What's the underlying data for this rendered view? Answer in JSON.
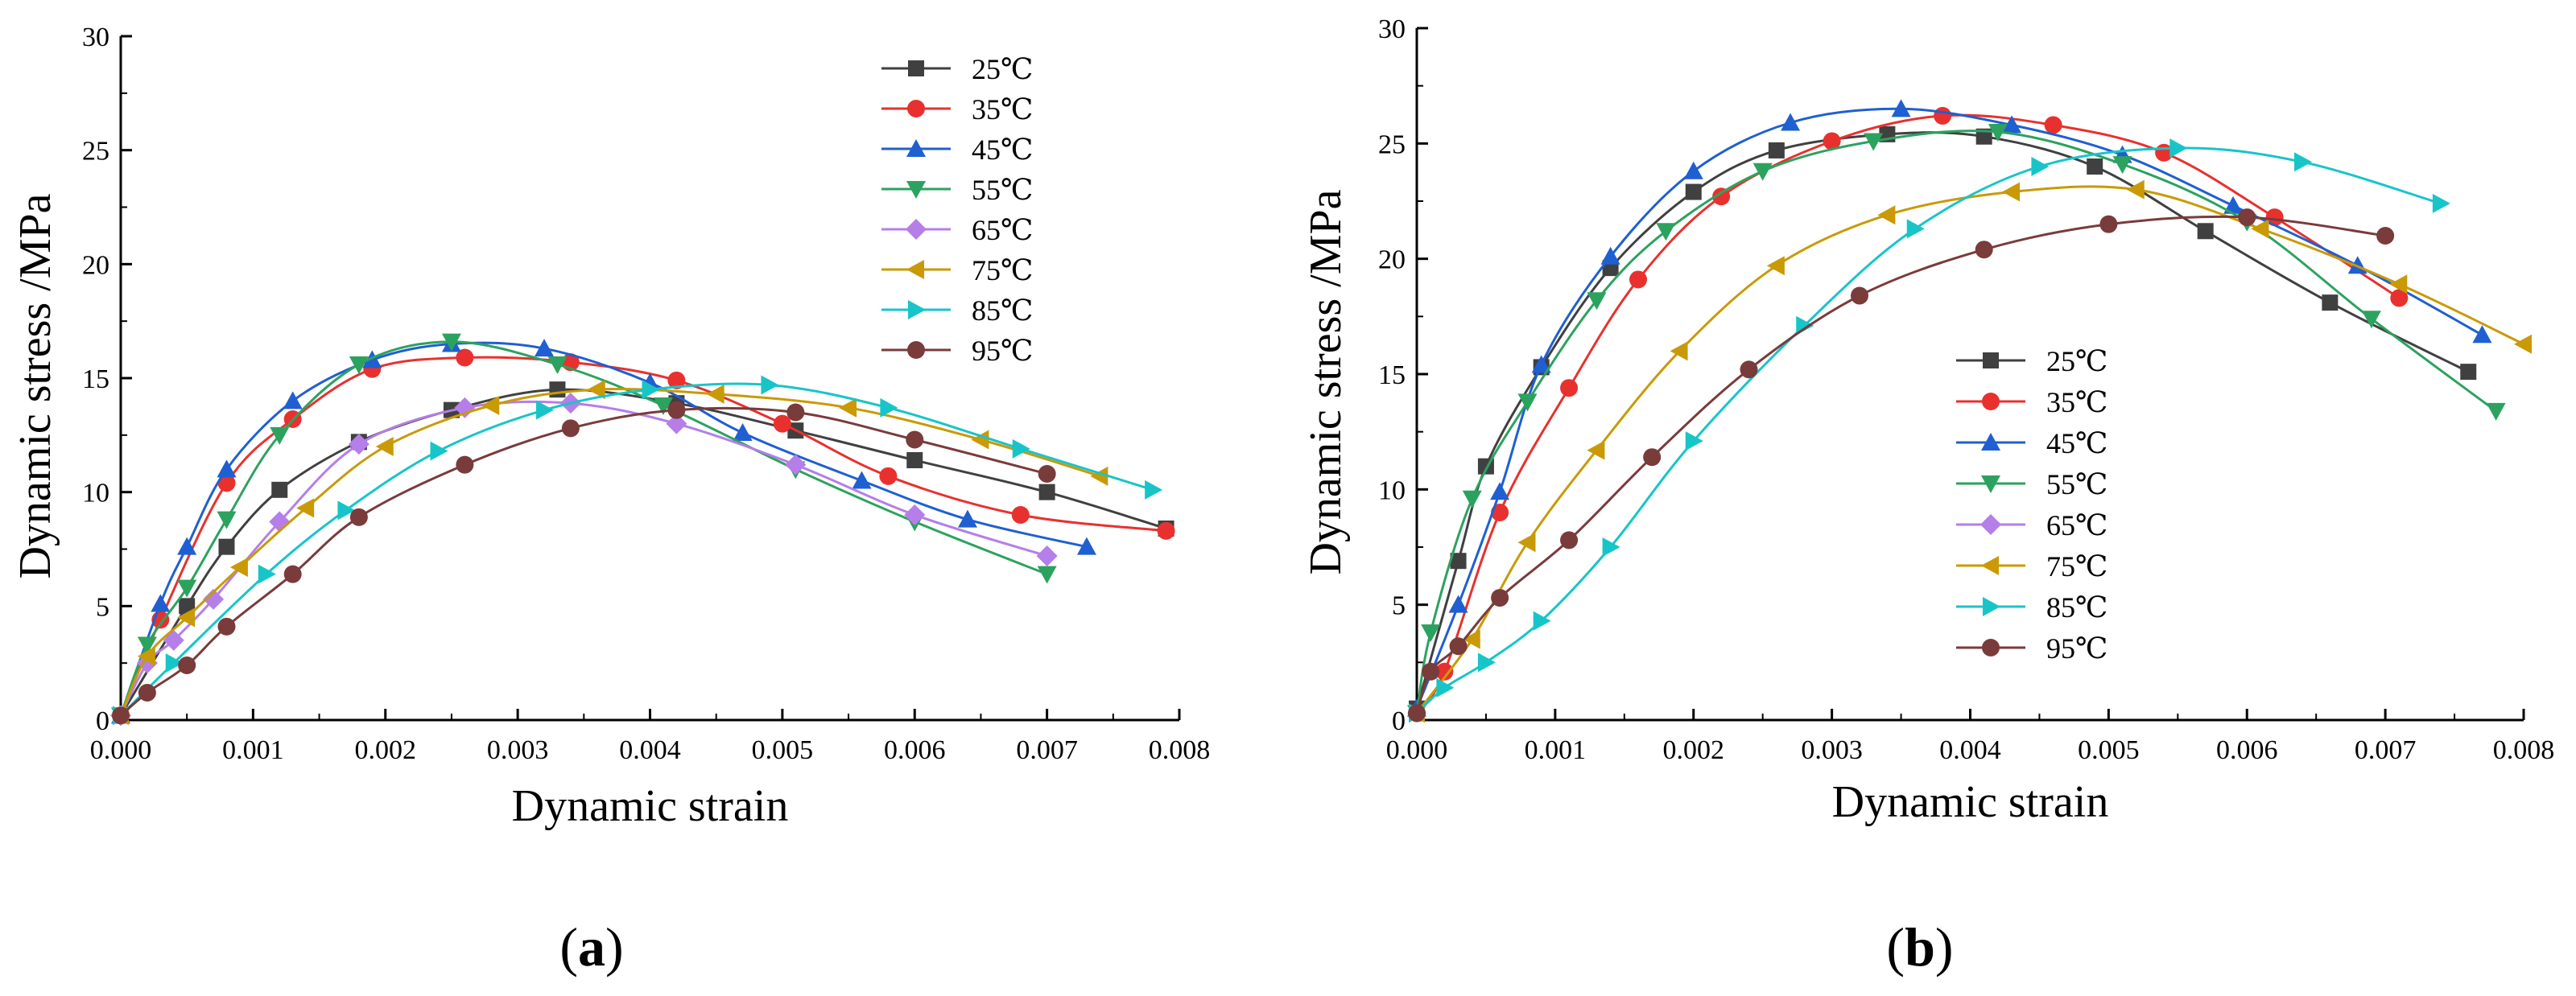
{
  "figure": {
    "panels": [
      {
        "caption_open": "(",
        "caption_letter": "a",
        "caption_close": ")"
      },
      {
        "caption_open": "(",
        "caption_letter": "b",
        "caption_close": ")"
      }
    ]
  },
  "chart_data": [
    {
      "type": "line",
      "panel": "a",
      "xlabel": "Dynamic strain",
      "ylabel": "Dynamic stress /MPa",
      "xlim": [
        0,
        0.008
      ],
      "ylim": [
        0,
        30
      ],
      "xticks": [
        "0.000",
        "0.001",
        "0.002",
        "0.003",
        "0.004",
        "0.005",
        "0.006",
        "0.007",
        "0.008"
      ],
      "yticks": [
        "0",
        "5",
        "10",
        "15",
        "20",
        "25",
        "30"
      ],
      "grid": false,
      "legend_position": "top-right",
      "series": [
        {
          "name": "25℃",
          "color": "#404040",
          "marker": "square",
          "x": [
            0,
            0.0005,
            0.0008,
            0.0012,
            0.0018,
            0.0025,
            0.0033,
            0.0042,
            0.0051,
            0.006,
            0.007,
            0.0079
          ],
          "y": [
            0.2,
            5.0,
            7.6,
            10.1,
            12.2,
            13.6,
            14.5,
            13.9,
            12.7,
            11.4,
            10.0,
            8.4
          ]
        },
        {
          "name": "35℃",
          "color": "#e8312e",
          "marker": "circle",
          "x": [
            0,
            0.0003,
            0.0008,
            0.0013,
            0.0019,
            0.0026,
            0.0034,
            0.0042,
            0.005,
            0.0058,
            0.0068,
            0.0079
          ],
          "y": [
            0.2,
            4.4,
            10.4,
            13.2,
            15.4,
            15.9,
            15.7,
            14.9,
            13.0,
            10.7,
            9.0,
            8.3
          ]
        },
        {
          "name": "45℃",
          "color": "#1f5fd1",
          "marker": "triangle-up",
          "x": [
            0,
            0.0003,
            0.0005,
            0.0008,
            0.0013,
            0.0019,
            0.0025,
            0.0032,
            0.004,
            0.0047,
            0.0056,
            0.0064,
            0.0073
          ],
          "y": [
            0.2,
            5.1,
            7.6,
            11.0,
            14.0,
            15.8,
            16.5,
            16.3,
            14.8,
            12.6,
            10.5,
            8.8,
            7.6
          ]
        },
        {
          "name": "55℃",
          "color": "#2ca25f",
          "marker": "triangle-down",
          "x": [
            0,
            0.0002,
            0.0005,
            0.0008,
            0.0012,
            0.0018,
            0.0025,
            0.0033,
            0.0041,
            0.0051,
            0.006,
            0.007
          ],
          "y": [
            0.2,
            3.3,
            5.8,
            8.8,
            12.5,
            15.6,
            16.6,
            15.6,
            13.8,
            11.0,
            8.7,
            6.4
          ]
        },
        {
          "name": "65℃",
          "color": "#b57ee8",
          "marker": "diamond",
          "x": [
            0,
            0.0002,
            0.0004,
            0.0007,
            0.0012,
            0.0018,
            0.0026,
            0.0034,
            0.0042,
            0.0051,
            0.006,
            0.007
          ],
          "y": [
            0.2,
            2.5,
            3.5,
            5.3,
            8.7,
            12.1,
            13.7,
            13.9,
            13.0,
            11.2,
            9.0,
            7.2
          ]
        },
        {
          "name": "75℃",
          "color": "#c99a06",
          "marker": "triangle-left",
          "x": [
            0,
            0.0002,
            0.0005,
            0.0009,
            0.0014,
            0.002,
            0.0028,
            0.0036,
            0.0045,
            0.0055,
            0.0065,
            0.0074
          ],
          "y": [
            0.2,
            2.8,
            4.5,
            6.7,
            9.3,
            12.0,
            13.8,
            14.5,
            14.3,
            13.7,
            12.3,
            10.7
          ]
        },
        {
          "name": "85℃",
          "color": "#17c5c9",
          "marker": "triangle-right",
          "x": [
            0,
            0.0004,
            0.0011,
            0.0017,
            0.0024,
            0.0032,
            0.004,
            0.0049,
            0.0058,
            0.0068,
            0.0078
          ],
          "y": [
            0.2,
            2.5,
            6.4,
            9.2,
            11.8,
            13.6,
            14.5,
            14.7,
            13.7,
            11.9,
            10.1
          ]
        },
        {
          "name": "95℃",
          "color": "#7a3b3b",
          "marker": "circle",
          "x": [
            0,
            0.0002,
            0.0005,
            0.0008,
            0.0013,
            0.0018,
            0.0026,
            0.0034,
            0.0042,
            0.0051,
            0.006,
            0.007
          ],
          "y": [
            0.2,
            1.2,
            2.4,
            4.1,
            6.4,
            8.9,
            11.2,
            12.8,
            13.6,
            13.5,
            12.3,
            10.8
          ]
        }
      ]
    },
    {
      "type": "line",
      "panel": "b",
      "xlabel": "Dynamic strain",
      "ylabel": "Dynamic stress /MPa",
      "xlim": [
        0,
        0.008
      ],
      "ylim": [
        0,
        30
      ],
      "xticks": [
        "0.000",
        "0.001",
        "0.002",
        "0.003",
        "0.004",
        "0.005",
        "0.006",
        "0.007",
        "0.008"
      ],
      "yticks": [
        "0",
        "5",
        "10",
        "15",
        "20",
        "25",
        "30"
      ],
      "grid": false,
      "legend_position": "bottom-center",
      "series": [
        {
          "name": "25℃",
          "color": "#404040",
          "marker": "square",
          "x": [
            0,
            0.0003,
            0.0005,
            0.0009,
            0.0014,
            0.002,
            0.0026,
            0.0034,
            0.0041,
            0.0049,
            0.0057,
            0.0066,
            0.0076
          ],
          "y": [
            0.5,
            6.9,
            11.0,
            15.3,
            19.6,
            22.9,
            24.7,
            25.4,
            25.3,
            24.0,
            21.2,
            18.1,
            15.1
          ]
        },
        {
          "name": "35℃",
          "color": "#e8312e",
          "marker": "circle",
          "x": [
            0,
            0.0002,
            0.0006,
            0.0011,
            0.0016,
            0.0022,
            0.003,
            0.0038,
            0.0046,
            0.0054,
            0.0062,
            0.0071
          ],
          "y": [
            0.3,
            2.1,
            9.0,
            14.4,
            19.1,
            22.7,
            25.1,
            26.2,
            25.8,
            24.6,
            21.8,
            18.3
          ]
        },
        {
          "name": "45℃",
          "color": "#1f5fd1",
          "marker": "triangle-up",
          "x": [
            0,
            0.0003,
            0.0006,
            0.0009,
            0.0014,
            0.002,
            0.0027,
            0.0035,
            0.0043,
            0.0051,
            0.0059,
            0.0068,
            0.0077
          ],
          "y": [
            0.5,
            5.0,
            9.9,
            15.4,
            20.1,
            23.8,
            25.9,
            26.5,
            25.8,
            24.5,
            22.3,
            19.7,
            16.7
          ]
        },
        {
          "name": "55℃",
          "color": "#2ca25f",
          "marker": "triangle-down",
          "x": [
            0,
            0.0001,
            0.0004,
            0.0008,
            0.0013,
            0.0018,
            0.0025,
            0.0033,
            0.0042,
            0.0051,
            0.006,
            0.0069,
            0.0078
          ],
          "y": [
            0.3,
            3.8,
            9.6,
            13.8,
            18.2,
            21.2,
            23.8,
            25.1,
            25.5,
            24.1,
            21.6,
            17.4,
            13.4
          ]
        },
        {
          "name": "65℃",
          "color": "#b57ee8",
          "marker": "diamond",
          "x": [],
          "y": []
        },
        {
          "name": "75℃",
          "color": "#c99a06",
          "marker": "triangle-left",
          "x": [
            0,
            0.0004,
            0.0008,
            0.0013,
            0.0019,
            0.0026,
            0.0034,
            0.0043,
            0.0052,
            0.0061,
            0.0071,
            0.008
          ],
          "y": [
            0.3,
            3.5,
            7.7,
            11.7,
            16.0,
            19.7,
            21.9,
            22.9,
            23.0,
            21.3,
            18.9,
            16.3
          ]
        },
        {
          "name": "85℃",
          "color": "#17c5c9",
          "marker": "triangle-right",
          "x": [
            0,
            0.0002,
            0.0005,
            0.0009,
            0.0014,
            0.002,
            0.0028,
            0.0036,
            0.0045,
            0.0055,
            0.0064,
            0.0074
          ],
          "y": [
            0.3,
            1.4,
            2.5,
            4.3,
            7.5,
            12.1,
            17.1,
            21.3,
            24.0,
            24.8,
            24.2,
            22.4
          ]
        },
        {
          "name": "95℃",
          "color": "#7a3b3b",
          "marker": "circle",
          "x": [
            0,
            0.0001,
            0.0003,
            0.0006,
            0.0011,
            0.0017,
            0.0024,
            0.0032,
            0.0041,
            0.005,
            0.006,
            0.007
          ],
          "y": [
            0.3,
            2.1,
            3.2,
            5.3,
            7.8,
            11.4,
            15.2,
            18.4,
            20.4,
            21.5,
            21.8,
            21.0
          ]
        }
      ]
    }
  ]
}
